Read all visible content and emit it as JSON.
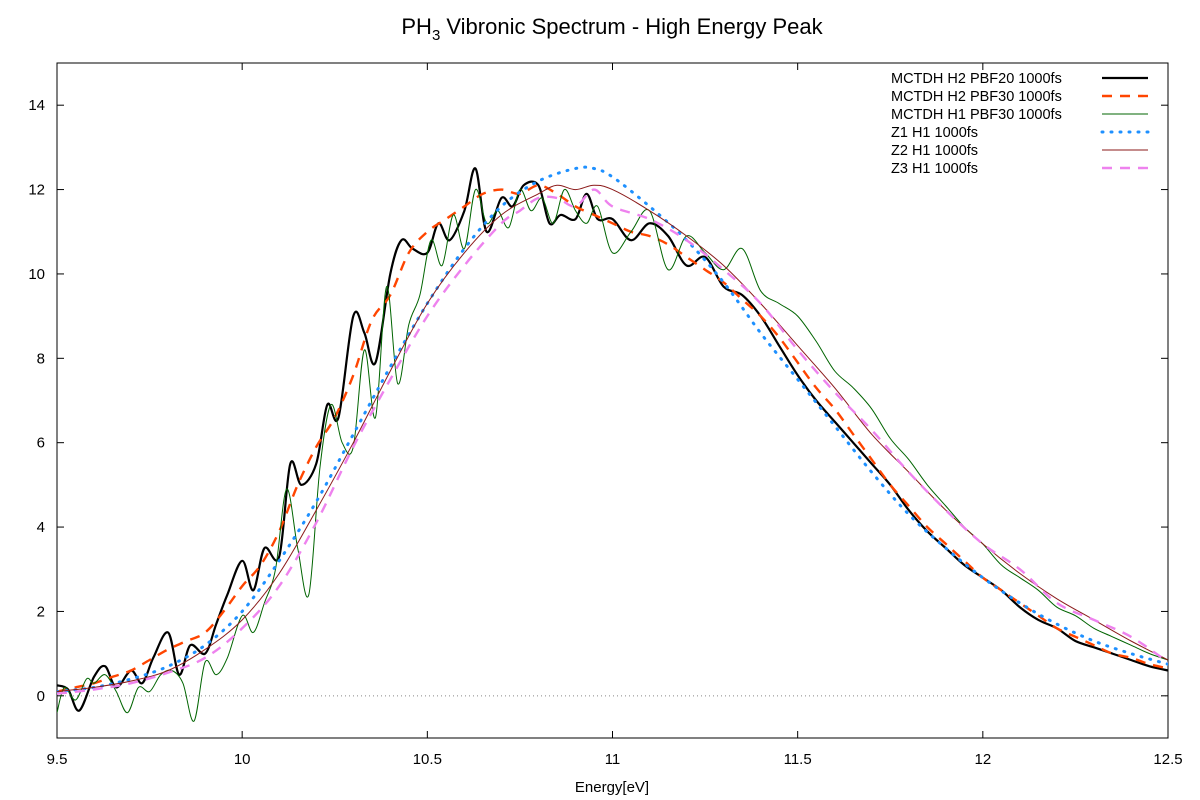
{
  "chart_data": {
    "type": "line",
    "title_main": "PH",
    "title_sub": "3",
    "title_rest": " Vibronic Spectrum - High Energy Peak",
    "xlabel": "Energy[eV]",
    "ylabel": "",
    "xlim": [
      9.5,
      12.5
    ],
    "ylim": [
      -1,
      15
    ],
    "xticks": [
      "9.5",
      "10",
      "10.5",
      "11",
      "11.5",
      "12",
      "12.5"
    ],
    "yticks": [
      "0",
      "2",
      "4",
      "6",
      "8",
      "10",
      "12",
      "14"
    ],
    "zero_line": true,
    "legend_position": "top-right",
    "series": [
      {
        "name": "MCTDH H2 PBF20 1000fs",
        "color": "#000000",
        "style": "solid-thick",
        "x": [
          9.5,
          9.53,
          9.56,
          9.6,
          9.63,
          9.66,
          9.7,
          9.73,
          9.76,
          9.8,
          9.83,
          9.86,
          9.9,
          9.93,
          9.96,
          10.0,
          10.03,
          10.06,
          10.1,
          10.13,
          10.16,
          10.2,
          10.23,
          10.26,
          10.3,
          10.33,
          10.36,
          10.4,
          10.43,
          10.46,
          10.5,
          10.53,
          10.56,
          10.6,
          10.63,
          10.66,
          10.7,
          10.73,
          10.76,
          10.8,
          10.83,
          10.86,
          10.9,
          10.93,
          10.96,
          11.0,
          11.05,
          11.1,
          11.15,
          11.2,
          11.25,
          11.3,
          11.35,
          11.4,
          11.45,
          11.5,
          11.55,
          11.6,
          11.65,
          11.7,
          11.75,
          11.8,
          11.85,
          11.9,
          11.95,
          12.0,
          12.05,
          12.1,
          12.15,
          12.2,
          12.25,
          12.3,
          12.35,
          12.4,
          12.45,
          12.5
        ],
        "y": [
          0.25,
          0.15,
          -0.35,
          0.45,
          0.7,
          0.2,
          0.6,
          0.3,
          0.9,
          1.5,
          0.5,
          1.2,
          1.0,
          1.7,
          2.4,
          3.2,
          2.5,
          3.5,
          3.3,
          5.5,
          5.0,
          5.5,
          6.9,
          6.6,
          9.0,
          8.6,
          7.9,
          10.0,
          10.8,
          10.6,
          10.5,
          11.2,
          10.8,
          11.5,
          12.5,
          11.0,
          11.8,
          11.6,
          12.1,
          12.1,
          11.2,
          11.4,
          11.3,
          11.9,
          11.3,
          11.3,
          10.8,
          11.2,
          10.9,
          10.2,
          10.4,
          9.7,
          9.5,
          9.0,
          8.3,
          7.6,
          7.0,
          6.5,
          6.0,
          5.5,
          5.0,
          4.4,
          3.9,
          3.5,
          3.1,
          2.8,
          2.5,
          2.1,
          1.8,
          1.6,
          1.3,
          1.15,
          1.0,
          0.85,
          0.7,
          0.6
        ]
      },
      {
        "name": "MCTDH H2 PBF30 1000fs",
        "color": "#ff4500",
        "style": "dashed-thick",
        "x": [
          9.5,
          9.55,
          9.6,
          9.65,
          9.7,
          9.75,
          9.8,
          9.85,
          9.9,
          9.95,
          10.0,
          10.05,
          10.1,
          10.15,
          10.2,
          10.25,
          10.3,
          10.35,
          10.4,
          10.45,
          10.5,
          10.55,
          10.6,
          10.65,
          10.7,
          10.75,
          10.8,
          10.85,
          10.9,
          10.95,
          11.0,
          11.05,
          11.1,
          11.15,
          11.2,
          11.25,
          11.3,
          11.35,
          11.4,
          11.45,
          11.5,
          11.55,
          11.6,
          11.65,
          11.7,
          11.75,
          11.8,
          11.85,
          11.9,
          11.95,
          12.0,
          12.05,
          12.1,
          12.15,
          12.2,
          12.25,
          12.3,
          12.35,
          12.4,
          12.45,
          12.5
        ],
        "y": [
          0.1,
          0.2,
          0.3,
          0.45,
          0.6,
          0.85,
          1.1,
          1.3,
          1.5,
          2.0,
          2.6,
          3.1,
          3.9,
          5.0,
          5.9,
          6.6,
          7.6,
          8.9,
          9.5,
          10.5,
          11.0,
          11.3,
          11.6,
          11.9,
          12.0,
          11.9,
          12.1,
          11.9,
          11.6,
          11.4,
          11.2,
          11.0,
          10.9,
          10.7,
          10.4,
          10.1,
          9.8,
          9.4,
          9.0,
          8.5,
          7.9,
          7.3,
          6.8,
          6.2,
          5.6,
          5.0,
          4.5,
          4.0,
          3.6,
          3.2,
          2.8,
          2.5,
          2.2,
          1.9,
          1.6,
          1.4,
          1.2,
          1.0,
          0.9,
          0.75,
          0.65
        ]
      },
      {
        "name": "MCTDH H1 PBF30 1000fs",
        "color": "#006400",
        "style": "solid-thin",
        "x": [
          9.5,
          9.52,
          9.55,
          9.58,
          9.6,
          9.63,
          9.66,
          9.69,
          9.72,
          9.75,
          9.78,
          9.81,
          9.84,
          9.87,
          9.9,
          9.93,
          9.96,
          10.0,
          10.03,
          10.06,
          10.09,
          10.12,
          10.15,
          10.18,
          10.21,
          10.24,
          10.27,
          10.3,
          10.33,
          10.36,
          10.39,
          10.42,
          10.45,
          10.48,
          10.51,
          10.54,
          10.57,
          10.6,
          10.63,
          10.66,
          10.69,
          10.72,
          10.75,
          10.78,
          10.81,
          10.84,
          10.87,
          10.9,
          10.93,
          10.96,
          11.0,
          11.05,
          11.1,
          11.15,
          11.2,
          11.25,
          11.3,
          11.35,
          11.4,
          11.45,
          11.5,
          11.55,
          11.6,
          11.65,
          11.7,
          11.75,
          11.8,
          11.85,
          11.9,
          11.95,
          12.0,
          12.05,
          12.1,
          12.15,
          12.2,
          12.25,
          12.3,
          12.35,
          12.4,
          12.45,
          12.5
        ],
        "y": [
          -0.4,
          0.2,
          -0.1,
          0.4,
          0.3,
          0.5,
          0.1,
          -0.4,
          0.2,
          0.1,
          0.5,
          0.6,
          0.3,
          -0.6,
          0.8,
          0.5,
          0.9,
          1.9,
          1.5,
          2.2,
          3.0,
          4.9,
          3.5,
          2.4,
          5.4,
          6.9,
          6.0,
          5.9,
          8.2,
          6.6,
          9.7,
          7.4,
          8.8,
          9.5,
          10.8,
          10.2,
          11.4,
          10.6,
          12.0,
          11.2,
          11.5,
          11.1,
          12.0,
          11.5,
          11.8,
          11.2,
          12.0,
          11.5,
          11.2,
          11.6,
          10.5,
          11.0,
          11.5,
          10.1,
          10.9,
          10.5,
          10.1,
          10.6,
          9.6,
          9.3,
          9.0,
          8.4,
          7.7,
          7.3,
          6.8,
          6.1,
          5.6,
          5.0,
          4.5,
          4.0,
          3.6,
          3.1,
          2.8,
          2.5,
          2.1,
          1.9,
          1.6,
          1.4,
          1.2,
          1.0,
          0.85
        ]
      },
      {
        "name": "Z1 H1 1000fs",
        "color": "#1e90ff",
        "style": "dotted",
        "x": [
          9.5,
          9.6,
          9.7,
          9.8,
          9.9,
          10.0,
          10.1,
          10.2,
          10.3,
          10.4,
          10.5,
          10.6,
          10.7,
          10.8,
          10.9,
          10.95,
          11.0,
          11.1,
          11.2,
          11.3,
          11.4,
          11.5,
          11.6,
          11.7,
          11.8,
          11.9,
          12.0,
          12.1,
          12.2,
          12.3,
          12.4,
          12.5
        ],
        "y": [
          0.1,
          0.2,
          0.4,
          0.7,
          1.2,
          2.0,
          3.2,
          4.6,
          6.2,
          7.8,
          9.3,
          10.6,
          11.6,
          12.2,
          12.5,
          12.5,
          12.3,
          11.6,
          10.8,
          9.8,
          8.6,
          7.5,
          6.4,
          5.3,
          4.3,
          3.5,
          2.8,
          2.2,
          1.7,
          1.3,
          1.0,
          0.75
        ]
      },
      {
        "name": "Z2 H1 1000fs",
        "color": "#8b1a1a",
        "style": "solid-thin",
        "x": [
          9.5,
          9.6,
          9.7,
          9.8,
          9.9,
          10.0,
          10.1,
          10.2,
          10.3,
          10.4,
          10.5,
          10.6,
          10.7,
          10.8,
          10.85,
          10.9,
          10.95,
          11.0,
          11.1,
          11.2,
          11.3,
          11.4,
          11.5,
          11.6,
          11.7,
          11.8,
          11.9,
          12.0,
          12.1,
          12.2,
          12.3,
          12.4,
          12.5
        ],
        "y": [
          0.1,
          0.2,
          0.35,
          0.6,
          1.1,
          1.8,
          2.9,
          4.4,
          6.0,
          7.7,
          9.3,
          10.5,
          11.4,
          11.9,
          12.1,
          12.0,
          12.1,
          12.0,
          11.5,
          10.9,
          10.2,
          9.3,
          8.3,
          7.3,
          6.2,
          5.3,
          4.4,
          3.6,
          2.9,
          2.3,
          1.8,
          1.3,
          0.85
        ]
      },
      {
        "name": "Z3 H1 1000fs",
        "color": "#ee82ee",
        "style": "dashed-thick",
        "x": [
          9.5,
          9.6,
          9.7,
          9.8,
          9.9,
          10.0,
          10.1,
          10.2,
          10.3,
          10.4,
          10.5,
          10.6,
          10.7,
          10.75,
          10.8,
          10.85,
          10.9,
          10.95,
          11.0,
          11.1,
          11.2,
          11.3,
          11.4,
          11.5,
          11.6,
          11.7,
          11.8,
          11.9,
          12.0,
          12.1,
          12.2,
          12.3,
          12.4,
          12.5
        ],
        "y": [
          0.05,
          0.15,
          0.3,
          0.55,
          0.9,
          1.6,
          2.6,
          4.1,
          5.9,
          7.5,
          9.0,
          10.2,
          11.2,
          11.5,
          11.8,
          11.8,
          11.6,
          12.0,
          11.6,
          11.3,
          10.8,
          10.1,
          9.3,
          8.2,
          7.2,
          6.3,
          5.3,
          4.4,
          3.6,
          3.0,
          2.2,
          1.8,
          1.4,
          0.8
        ]
      }
    ]
  }
}
